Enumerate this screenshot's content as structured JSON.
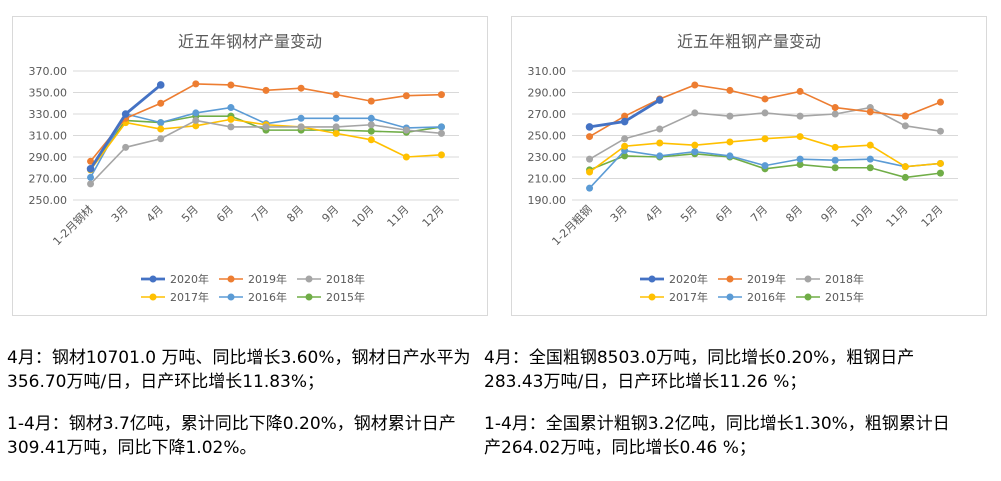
{
  "colors": {
    "2020": "#4472c4",
    "2019": "#ed7d31",
    "2018": "#a5a5a5",
    "2017": "#ffc000",
    "2016": "#5b9bd5",
    "2015": "#70ad47"
  },
  "chart_data": [
    {
      "id": "steel-products",
      "type": "line",
      "title": "近五年钢材产量变动",
      "xlabel": "",
      "ylabel": "",
      "categories": [
        "1-2月钢材",
        "3月",
        "4月",
        "5月",
        "6月",
        "7月",
        "8月",
        "9月",
        "10月",
        "11月",
        "12月"
      ],
      "y_ticks": [
        "250.00",
        "270.00",
        "290.00",
        "310.00",
        "330.00",
        "350.00",
        "370.00"
      ],
      "ylim": [
        250,
        370
      ],
      "legend_position": "bottom",
      "series": [
        {
          "name": "2020年",
          "key": "2020",
          "values": [
            279,
            330,
            357,
            null,
            null,
            null,
            null,
            null,
            null,
            null,
            null
          ]
        },
        {
          "name": "2019年",
          "key": "2019",
          "values": [
            286,
            326,
            340,
            358,
            357,
            352,
            354,
            348,
            342,
            347,
            348
          ]
        },
        {
          "name": "2018年",
          "key": "2018",
          "values": [
            265,
            299,
            307,
            324,
            318,
            318,
            318,
            318,
            320,
            315,
            312
          ]
        },
        {
          "name": "2017年",
          "key": "2017",
          "values": [
            278,
            322,
            316,
            319,
            325,
            320,
            318,
            312,
            306,
            290,
            292
          ]
        },
        {
          "name": "2016年",
          "key": "2016",
          "values": [
            271,
            330,
            322,
            331,
            336,
            321,
            326,
            326,
            326,
            317,
            318
          ]
        },
        {
          "name": "2015年",
          "key": "2015",
          "values": [
            279,
            324,
            322,
            328,
            328,
            315,
            315,
            315,
            314,
            313,
            318
          ]
        }
      ]
    },
    {
      "id": "crude-steel",
      "type": "line",
      "title": "近五年粗钢产量变动",
      "xlabel": "",
      "ylabel": "",
      "categories": [
        "1-2月粗钢",
        "3月",
        "4月",
        "5月",
        "6月",
        "7月",
        "8月",
        "9月",
        "10月",
        "11月",
        "12月"
      ],
      "y_ticks": [
        "190.00",
        "210.00",
        "230.00",
        "250.00",
        "270.00",
        "290.00",
        "310.00"
      ],
      "ylim": [
        190,
        310
      ],
      "legend_position": "bottom",
      "series": [
        {
          "name": "2020年",
          "key": "2020",
          "values": [
            258,
            263,
            283,
            null,
            null,
            null,
            null,
            null,
            null,
            null,
            null
          ]
        },
        {
          "name": "2019年",
          "key": "2019",
          "values": [
            249,
            268,
            284,
            297,
            292,
            284,
            291,
            276,
            272,
            268,
            281
          ]
        },
        {
          "name": "2018年",
          "key": "2018",
          "values": [
            228,
            247,
            256,
            271,
            268,
            271,
            268,
            270,
            276,
            259,
            254
          ]
        },
        {
          "name": "2017年",
          "key": "2017",
          "values": [
            216,
            240,
            243,
            241,
            244,
            247,
            249,
            239,
            241,
            221,
            224
          ]
        },
        {
          "name": "2016年",
          "key": "2016",
          "values": [
            201,
            236,
            231,
            235,
            231,
            222,
            228,
            227,
            228,
            221,
            224
          ]
        },
        {
          "name": "2015年",
          "key": "2015",
          "values": [
            218,
            231,
            230,
            233,
            230,
            219,
            223,
            220,
            220,
            211,
            215
          ]
        }
      ]
    }
  ],
  "captions": {
    "left": {
      "line1": "4月：钢材10701.0 万吨、同比增长3.60%，钢材日产水平为356.70万吨/日，日产环比增长11.83%；",
      "line2": "1-4月：钢材3.7亿吨，累计同比下降0.20%，钢材累计日产309.41万吨，同比下降1.02%。"
    },
    "right": {
      "line1": "4月：全国粗钢8503.0万吨，同比增长0.20%，粗钢日产283.43万吨/日，日产环比增长11.26 %；",
      "line2": "1-4月：全国累计粗钢3.2亿吨，同比增长1.30%，粗钢累计日产264.02万吨，同比增长0.46 %；"
    }
  }
}
